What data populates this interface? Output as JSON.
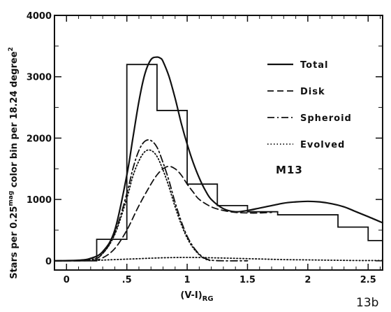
{
  "chart_data": {
    "type": "line",
    "panel_label": "13b",
    "cluster_label": "M13",
    "xlabel": "(V-I)",
    "xlabel_subscript": "RG",
    "ylabel_parts": [
      "Stars per 0.25",
      "mag",
      " color bin per 18.24 degree",
      "2"
    ],
    "xlim": [
      -0.1,
      2.62
    ],
    "ylim": [
      -150,
      4000
    ],
    "x_ticks": [
      0,
      0.5,
      1,
      1.5,
      2,
      2.5
    ],
    "x_tick_labels": [
      "0",
      ".5",
      "1",
      "1.5",
      "2",
      "2.5"
    ],
    "y_ticks": [
      0,
      1000,
      2000,
      3000,
      4000
    ],
    "y_tick_labels": [
      "0",
      "1000",
      "2000",
      "3000",
      "4000"
    ],
    "grid": false,
    "legend_position": "top-right",
    "histogram": {
      "bin_edges": [
        -0.1,
        0.25,
        0.5,
        0.75,
        1.0,
        1.25,
        1.5,
        1.75,
        2.0,
        2.25,
        2.5,
        2.62
      ],
      "values": [
        0,
        350,
        3200,
        2450,
        1250,
        900,
        800,
        750,
        750,
        550,
        330
      ]
    },
    "series": [
      {
        "name": "Total",
        "style": "solid",
        "x": [
          -0.1,
          0.1,
          0.2,
          0.3,
          0.4,
          0.5,
          0.55,
          0.6,
          0.65,
          0.7,
          0.75,
          0.78,
          0.8,
          0.85,
          0.9,
          0.95,
          1.0,
          1.05,
          1.1,
          1.15,
          1.2,
          1.3,
          1.4,
          1.5,
          1.6,
          1.7,
          1.8,
          1.9,
          2.0,
          2.1,
          2.2,
          2.3,
          2.4,
          2.5,
          2.62
        ],
        "y": [
          0,
          10,
          40,
          150,
          500,
          1400,
          2000,
          2600,
          3050,
          3280,
          3320,
          3300,
          3250,
          3000,
          2650,
          2250,
          1900,
          1600,
          1350,
          1150,
          1000,
          850,
          800,
          820,
          860,
          900,
          940,
          960,
          970,
          960,
          930,
          880,
          800,
          720,
          620
        ]
      },
      {
        "name": "Disk",
        "style": "dashed",
        "x": [
          -0.1,
          0.2,
          0.3,
          0.4,
          0.5,
          0.6,
          0.7,
          0.75,
          0.8,
          0.85,
          0.9,
          0.95,
          1.0,
          1.05,
          1.1,
          1.2,
          1.3,
          1.4,
          1.5,
          1.6,
          1.7
        ],
        "y": [
          0,
          5,
          50,
          200,
          500,
          900,
          1250,
          1400,
          1500,
          1540,
          1500,
          1400,
          1250,
          1120,
          1000,
          880,
          820,
          790,
          780,
          780,
          790
        ]
      },
      {
        "name": "Spheroid",
        "style": "dashdot",
        "x": [
          -0.1,
          0.2,
          0.3,
          0.4,
          0.5,
          0.55,
          0.6,
          0.65,
          0.7,
          0.75,
          0.8,
          0.85,
          0.9,
          0.95,
          1.0,
          1.05,
          1.1,
          1.15,
          1.2,
          1.3,
          1.4,
          1.5
        ],
        "y": [
          0,
          20,
          120,
          450,
          1100,
          1500,
          1800,
          1950,
          1960,
          1850,
          1600,
          1300,
          950,
          650,
          400,
          230,
          110,
          40,
          10,
          0,
          0,
          0
        ]
      },
      {
        "name": "Evolved",
        "style": "dotted",
        "x": [
          -0.1,
          0.2,
          0.3,
          0.4,
          0.5,
          0.55,
          0.6,
          0.65,
          0.7,
          0.75,
          0.8,
          0.85,
          0.9,
          0.95,
          1.0,
          1.05,
          1.1,
          1.15,
          1.2
        ],
        "y": [
          0,
          20,
          120,
          430,
          1020,
          1380,
          1630,
          1780,
          1800,
          1700,
          1480,
          1200,
          880,
          600,
          370,
          210,
          100,
          30,
          0
        ]
      },
      {
        "name": "",
        "style": "dotted",
        "x": [
          -0.1,
          0.2,
          0.4,
          0.6,
          0.8,
          1.0,
          1.2,
          1.4,
          1.6,
          1.8,
          2.0,
          2.2,
          2.4,
          2.62
        ],
        "y": [
          0,
          5,
          20,
          35,
          50,
          55,
          50,
          40,
          30,
          20,
          15,
          10,
          5,
          5
        ]
      }
    ]
  },
  "colors": {
    "ink": "#111111",
    "background": "#ffffff"
  }
}
